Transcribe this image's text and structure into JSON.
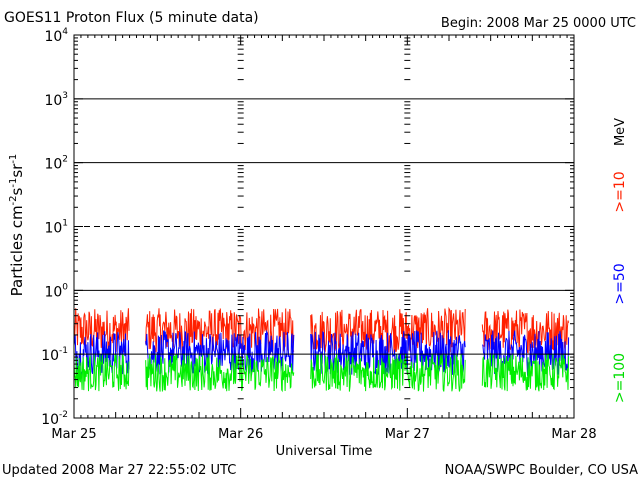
{
  "chart_data": {
    "type": "line",
    "title": "GOES11 Proton Flux (5 minute data)",
    "begin_label": "Begin: 2008 Mar 25 0000 UTC",
    "ylabel": "Particles cm⁻²s⁻¹sr⁻¹",
    "ylabel_parts": {
      "base": "Particles cm",
      "e1": "-2",
      "mid": "s",
      "e2": "-1",
      "mid2": "sr",
      "e3": "-1"
    },
    "xlabel": "Universal Time",
    "yscale": "log",
    "ylim": [
      0.01,
      10000
    ],
    "y_ticks": [
      {
        "value": 10000,
        "base": "10",
        "exp": "4"
      },
      {
        "value": 1000,
        "base": "10",
        "exp": "3"
      },
      {
        "value": 100,
        "base": "10",
        "exp": "2"
      },
      {
        "value": 10,
        "base": "10",
        "exp": "1"
      },
      {
        "value": 1,
        "base": "10",
        "exp": "0"
      },
      {
        "value": 0.1,
        "base": "10",
        "exp": "-1"
      },
      {
        "value": 0.01,
        "base": "10",
        "exp": "-2"
      }
    ],
    "xlim_days": [
      0,
      3
    ],
    "x_tick_labels": [
      "Mar 25",
      "Mar 26",
      "Mar 27",
      "Mar 28"
    ],
    "threshold_lines": [
      {
        "value": 1000,
        "style": "solid"
      },
      {
        "value": 100,
        "style": "solid"
      },
      {
        "value": 10,
        "style": "dashed"
      },
      {
        "value": 1,
        "style": "solid"
      },
      {
        "value": 0.1,
        "style": "solid"
      }
    ],
    "energy_unit": "MeV",
    "series": [
      {
        "name": ">=10",
        "color": "#ff2000",
        "center": 0.2,
        "spread": 0.35
      },
      {
        "name": ">=50",
        "color": "#0000ff",
        "center": 0.09,
        "spread": 0.35
      },
      {
        "name": ">=100",
        "color": "#00ee00",
        "center": 0.045,
        "spread": 0.3
      }
    ],
    "data_gaps_days": [
      [
        0.33,
        0.43
      ],
      [
        0.33,
        0.43
      ],
      [
        1.32,
        1.42
      ],
      [
        2.35,
        2.45
      ]
    ],
    "data_segments_days": [
      [
        0.0,
        0.33
      ],
      [
        0.43,
        1.32
      ],
      [
        1.42,
        2.35
      ],
      [
        2.45,
        2.97
      ]
    ]
  },
  "footer": {
    "updated": "Updated 2008 Mar 27 22:55:02 UTC",
    "source": "NOAA/SWPC Boulder, CO USA"
  }
}
